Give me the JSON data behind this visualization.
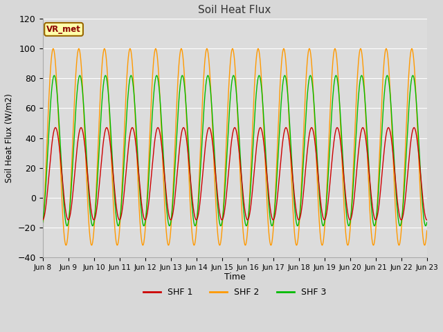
{
  "title": "Soil Heat Flux",
  "xlabel": "Time",
  "ylabel": "Soil Heat Flux (W/m2)",
  "ylim": [
    -40,
    120
  ],
  "yticks": [
    -40,
    -20,
    0,
    20,
    40,
    60,
    80,
    100,
    120
  ],
  "n_days": 15,
  "shf1_color": "#cc0000",
  "shf2_color": "#ff9900",
  "shf3_color": "#00bb00",
  "shf1_peak": 47,
  "shf2_peak": 100,
  "shf3_peak": 82,
  "shf1_trough": -15,
  "shf2_trough": -32,
  "shf3_trough": -19,
  "bg_color": "#dcdcdc",
  "fig_bg_color": "#d8d8d8",
  "vr_met_label": "VR_met",
  "legend_labels": [
    "SHF 1",
    "SHF 2",
    "SHF 3"
  ],
  "xtick_labels": [
    "Jun 8",
    "Jun 9",
    "Jun 10",
    "Jun 11",
    "Jun 12",
    "Jun 13",
    "Jun 14",
    "Jun 15",
    "Jun 16",
    "Jun 17",
    "Jun 18",
    "Jun 19",
    "Jun 20",
    "Jun 21",
    "Jun 22",
    "Jun 23"
  ],
  "sampling_points": 1440,
  "shf2_phase_lead": 0.55,
  "shf3_phase_lead": 0.3,
  "shf1_phase": 0.0
}
